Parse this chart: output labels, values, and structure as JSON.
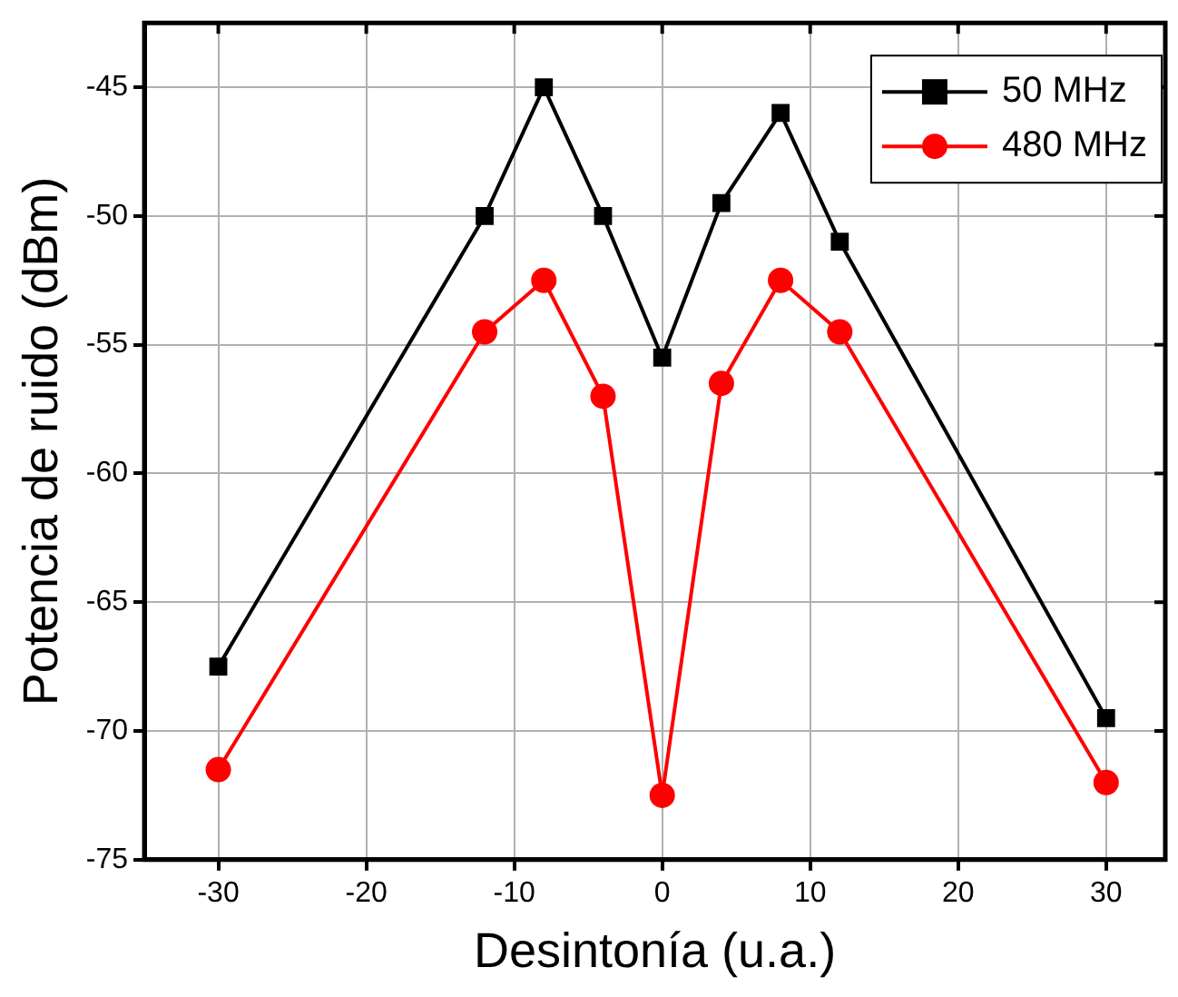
{
  "chart_data": {
    "type": "line",
    "xlabel": "Desintonía (u.a.)",
    "ylabel": "Potencia de ruido (dBm)",
    "x": [
      -30,
      -12,
      -8,
      -4,
      0,
      4,
      8,
      12,
      30
    ],
    "series": [
      {
        "name": "50 MHz",
        "color": "#000000",
        "marker": "square",
        "values": [
          -67.5,
          -50,
          -45,
          -50,
          -55.5,
          -49.5,
          -46,
          -51,
          -69.5
        ]
      },
      {
        "name": "480 MHz",
        "color": "#ff0000",
        "marker": "circle",
        "values": [
          -71.5,
          -54.5,
          -52.5,
          -57,
          -72.5,
          -56.5,
          -52.5,
          -54.5,
          -72
        ]
      }
    ],
    "xlim": [
      -35,
      34
    ],
    "xticks": [
      -30,
      -20,
      -10,
      0,
      10,
      20,
      30
    ],
    "ylim": [
      -75,
      -42.5
    ],
    "yticks": [
      -75,
      -70,
      -65,
      -60,
      -55,
      -50,
      -45
    ],
    "grid": true,
    "legend": "top right",
    "line_style": "solid"
  }
}
